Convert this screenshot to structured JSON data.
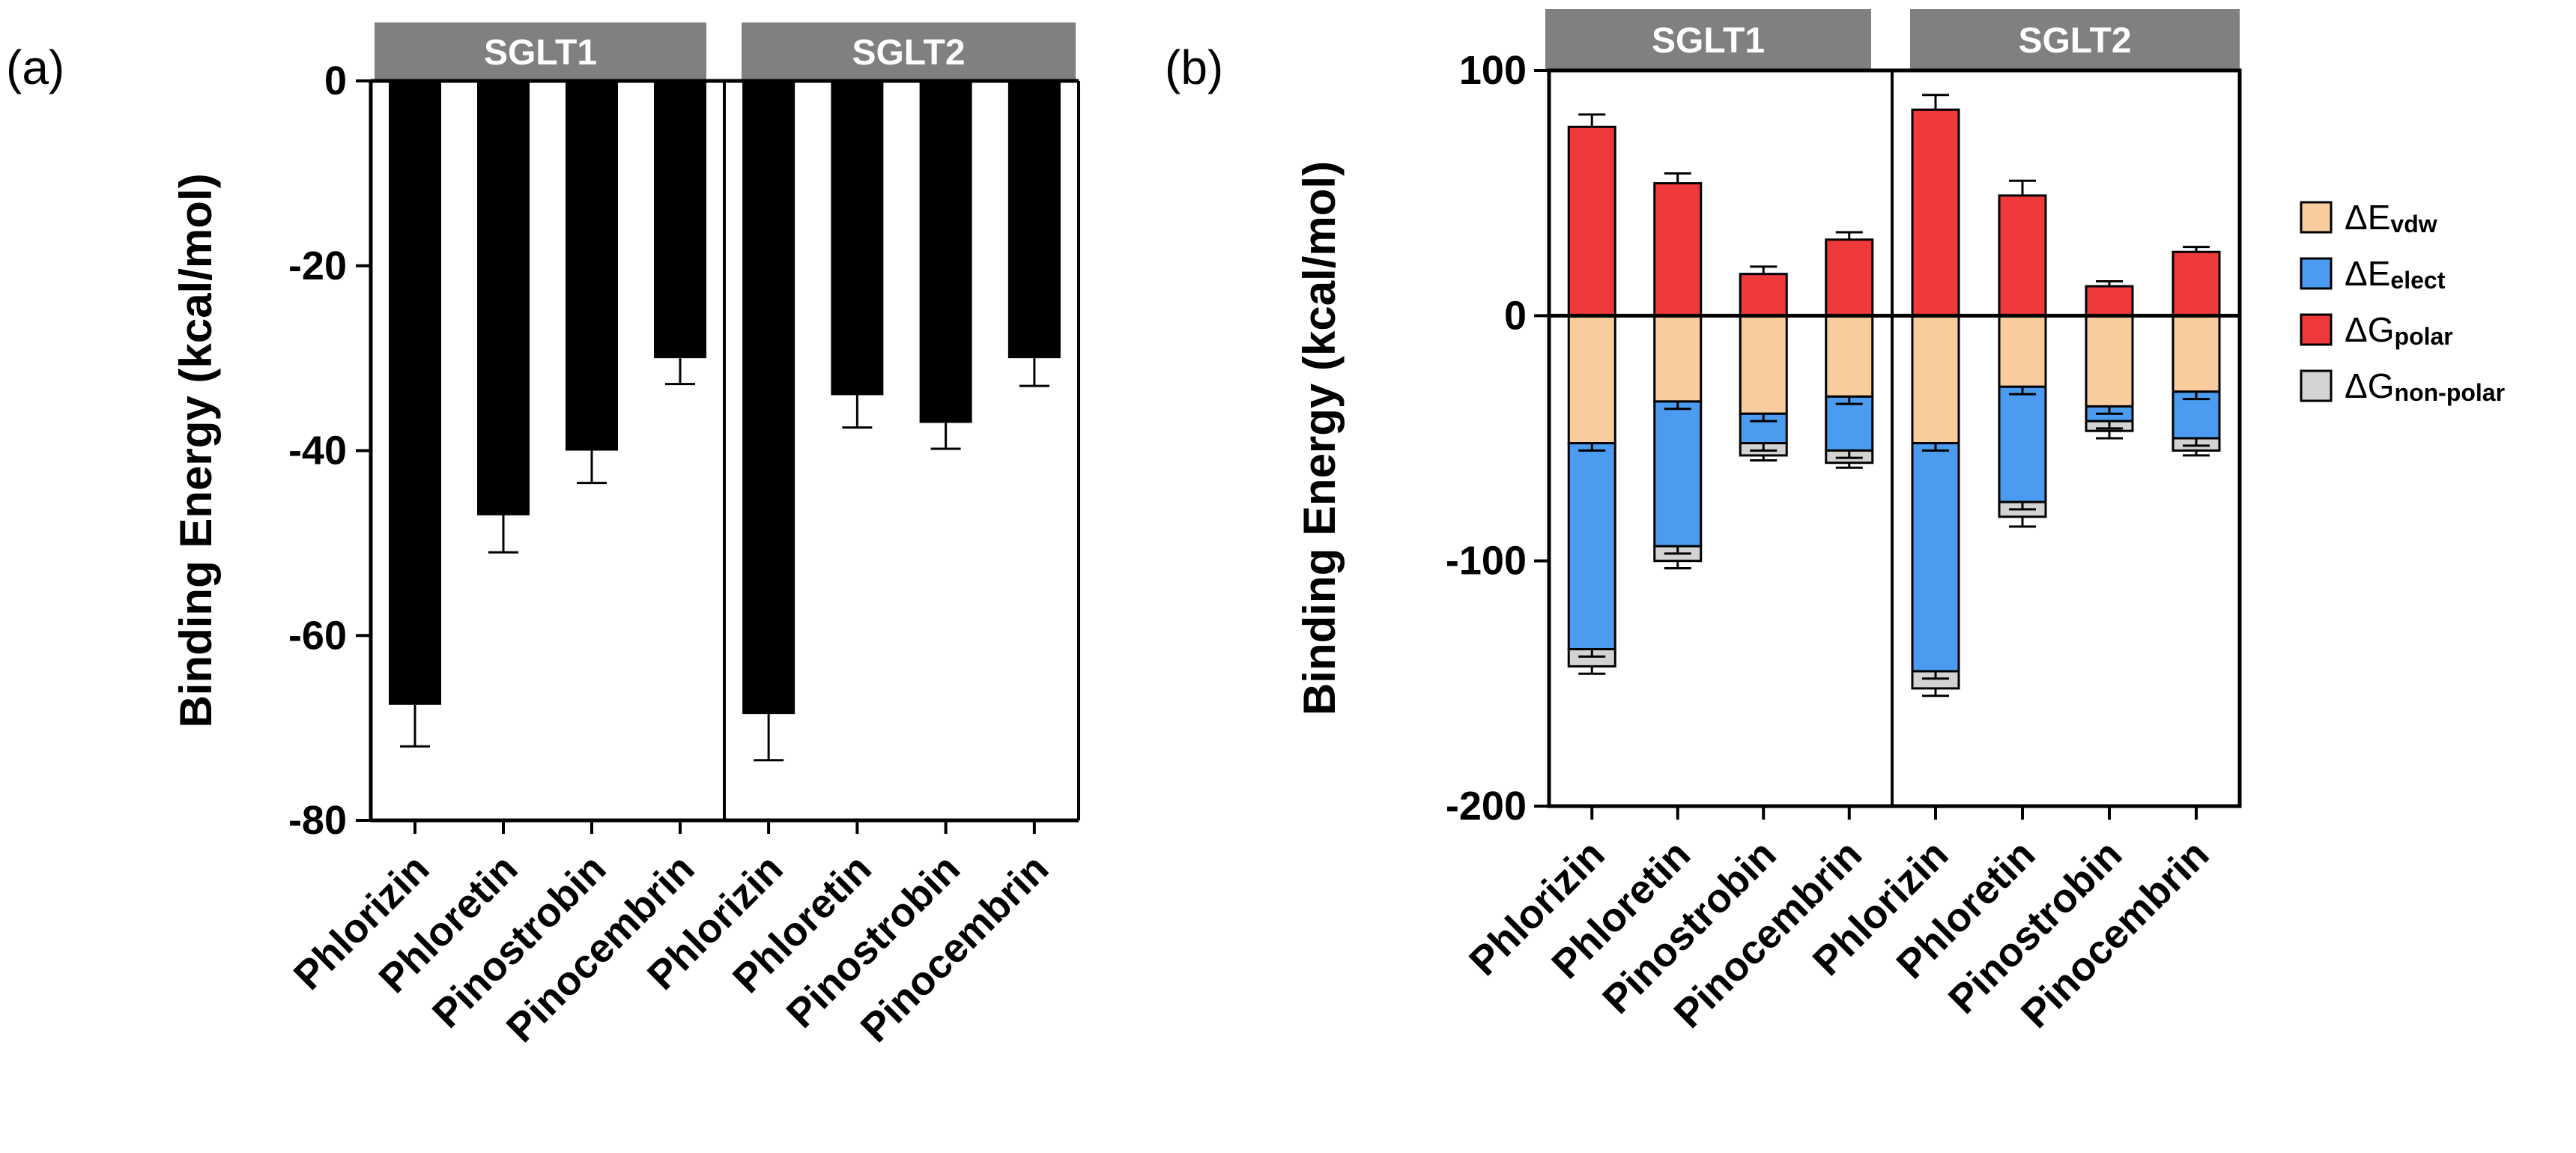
{
  "chart_data": [
    {
      "panel": "(a)",
      "type": "bar",
      "ylabel": "Binding Energy (kcal/mol)",
      "ylim": [
        -80,
        0
      ],
      "yticks": [
        0,
        -20,
        -40,
        -60,
        -80
      ],
      "ytick_labels": [
        "0",
        "-20",
        "-40",
        "-60",
        "-80"
      ],
      "groups": [
        "SGLT1",
        "SGLT2"
      ],
      "categories": [
        "Phlorizin",
        "Phloretin",
        "Pinostrobin",
        "Pinocembrin"
      ],
      "series": [
        {
          "name": "SGLT1",
          "values": [
            -67.5,
            -47.0,
            -40.0,
            -30.0
          ],
          "errors": [
            4.5,
            4.0,
            3.5,
            2.8
          ]
        },
        {
          "name": "SGLT2",
          "values": [
            -68.5,
            -34.0,
            -37.0,
            -30.0
          ],
          "errors": [
            5.0,
            3.5,
            2.8,
            3.0
          ]
        }
      ],
      "color": "#000000"
    },
    {
      "panel": "(b)",
      "type": "bar",
      "stacked": true,
      "ylabel": "Binding Energy (kcal/mol)",
      "ylim": [
        -200,
        100
      ],
      "yticks": [
        100,
        0,
        -100,
        -200
      ],
      "ytick_labels": [
        "100",
        "0",
        "-100",
        "-200"
      ],
      "groups": [
        "SGLT1",
        "SGLT2"
      ],
      "categories": [
        "Phlorizin",
        "Phloretin",
        "Pinostrobin",
        "Pinocembrin"
      ],
      "legend_position": "right",
      "legend": [
        {
          "key": "vdw",
          "symbol": "ΔE",
          "sub": "vdw",
          "color": "#f9cc9d"
        },
        {
          "key": "elect",
          "symbol": "ΔE",
          "sub": "elect",
          "color": "#4b9cf0"
        },
        {
          "key": "polar",
          "symbol": "ΔG",
          "sub": "polar",
          "color": "#f0393a"
        },
        {
          "key": "nonpolar",
          "symbol": "ΔG",
          "sub": "non-polar",
          "color": "#d3d3d3"
        }
      ],
      "series": [
        {
          "name": "SGLT1",
          "vdw": [
            -52,
            -35,
            -40,
            -33
          ],
          "elect": [
            -84,
            -59,
            -12,
            -22
          ],
          "nonpolar": [
            -7,
            -6,
            -5,
            -5
          ],
          "polar": [
            77,
            54,
            17,
            31
          ],
          "polar_err": [
            5,
            4,
            3,
            3
          ],
          "total_err": [
            3,
            3,
            2,
            2
          ]
        },
        {
          "name": "SGLT2",
          "vdw": [
            -52,
            -29,
            -37,
            -31
          ],
          "elect": [
            -93,
            -47,
            -6,
            -19
          ],
          "nonpolar": [
            -7,
            -6,
            -4,
            -5
          ],
          "polar": [
            84,
            49,
            12,
            26
          ],
          "polar_err": [
            6,
            6,
            2,
            2
          ],
          "total_err": [
            3,
            4,
            3,
            2
          ]
        }
      ]
    }
  ]
}
